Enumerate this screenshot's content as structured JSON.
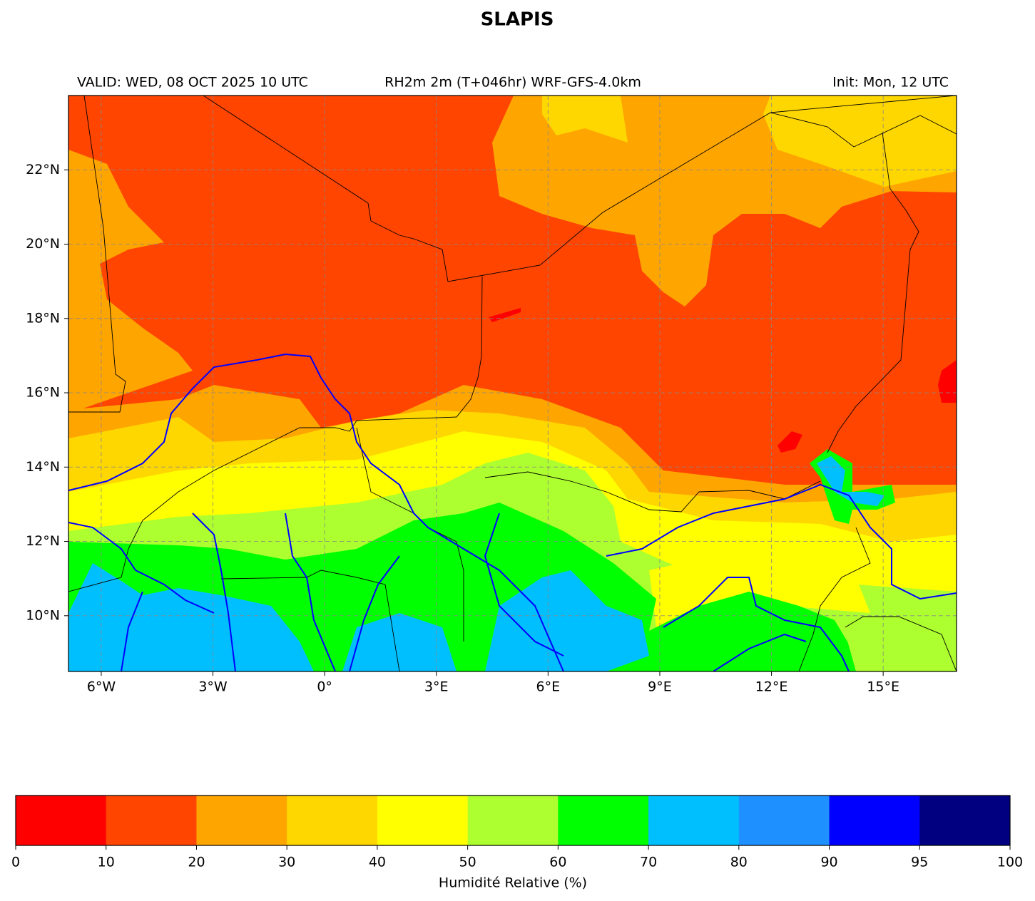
{
  "title": "SLAPIS",
  "header": {
    "left": "VALID: WED, 08 OCT 2025 10 UTC",
    "center": "RH2m 2m (T+046hr) WRF-GFS-4.0km",
    "right": "Init: Mon, 12 UTC"
  },
  "map": {
    "lon_range": [
      -6.88,
      16.97
    ],
    "lat_range": [
      8.5,
      24.0
    ],
    "lon_ticks": [
      {
        "value": -6,
        "label": "6°W"
      },
      {
        "value": -3,
        "label": "3°W"
      },
      {
        "value": 0,
        "label": "0°"
      },
      {
        "value": 3,
        "label": "3°E"
      },
      {
        "value": 6,
        "label": "6°E"
      },
      {
        "value": 9,
        "label": "9°E"
      },
      {
        "value": 12,
        "label": "12°E"
      },
      {
        "value": 15,
        "label": "15°E"
      }
    ],
    "lat_ticks": [
      {
        "value": 22,
        "label": "22°N"
      },
      {
        "value": 20,
        "label": "20°N"
      },
      {
        "value": 18,
        "label": "18°N"
      },
      {
        "value": 16,
        "label": "16°N"
      },
      {
        "value": 14,
        "label": "14°N"
      },
      {
        "value": 12,
        "label": "12°N"
      },
      {
        "value": 10,
        "label": "10°N"
      }
    ],
    "grid": true
  },
  "colorbar": {
    "label": "Humidité Relative (%)",
    "ticks": [
      0,
      10,
      20,
      30,
      40,
      50,
      60,
      70,
      80,
      90,
      95,
      100
    ],
    "colors": [
      "#ff0000",
      "#ff4500",
      "#ffa500",
      "#ffd700",
      "#ffff00",
      "#adff2f",
      "#00ff00",
      "#00bfff",
      "#1e90ff",
      "#0000ff",
      "#000080"
    ]
  }
}
